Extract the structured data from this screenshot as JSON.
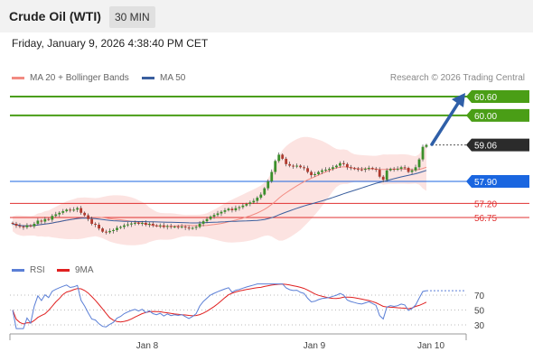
{
  "header": {
    "instrument": "Crude Oil (WTI)",
    "timeframe": "30 MIN"
  },
  "datetime": "Friday, January 9, 2026 4:38:40 PM CET",
  "legend": {
    "ma20_bb": {
      "label": "MA 20 + Bollinger Bands",
      "color": "#f28b82"
    },
    "ma50": {
      "label": "MA 50",
      "color": "#3a5f9e"
    }
  },
  "credit": "Research © 2026 Trading Central",
  "rsi_legend": {
    "rsi": {
      "label": "RSI",
      "color": "#5b7fd6"
    },
    "ma9": {
      "label": "9MA",
      "color": "#e02020"
    }
  },
  "chart_data": [
    {
      "type": "candlestick",
      "y_axis_side": "right",
      "current_price": {
        "value": 59.06,
        "label": "59.06"
      },
      "levels": [
        {
          "value": 60.6,
          "label": "60.60",
          "role": "resistance",
          "color": "#4a9e16"
        },
        {
          "value": 60.0,
          "label": "60.00",
          "role": "resistance",
          "color": "#4a9e16"
        },
        {
          "value": 57.9,
          "label": "57.90",
          "role": "pivot",
          "color": "#1a66e0"
        },
        {
          "value": 57.2,
          "label": "57.20",
          "role": "support",
          "color": "#e03030"
        },
        {
          "value": 56.75,
          "label": "56.75",
          "role": "support",
          "color": "#e03030"
        }
      ],
      "x_ticks": [
        "Jan 8",
        "Jan 9",
        "Jan 10"
      ],
      "close_series": [
        56.55,
        56.49,
        56.46,
        56.44,
        56.5,
        56.47,
        56.55,
        56.65,
        56.62,
        56.7,
        56.68,
        56.8,
        56.85,
        56.9,
        56.95,
        57.0,
        56.98,
        57.0,
        57.05,
        56.9,
        56.82,
        56.7,
        56.55,
        56.52,
        56.4,
        56.3,
        56.28,
        56.32,
        56.35,
        56.42,
        56.45,
        56.5,
        56.53,
        56.56,
        56.58,
        56.55,
        56.58,
        56.52,
        56.55,
        56.5,
        56.48,
        56.5,
        56.45,
        56.48,
        56.45,
        56.46,
        56.45,
        56.46,
        56.43,
        56.4,
        56.42,
        56.45,
        56.55,
        56.63,
        56.7,
        56.78,
        56.83,
        56.88,
        56.93,
        56.98,
        57.03,
        56.98,
        57.05,
        57.08,
        57.13,
        57.18,
        57.23,
        57.28,
        57.38,
        57.48,
        57.68,
        57.9,
        58.2,
        58.55,
        58.75,
        58.62,
        58.45,
        58.4,
        58.38,
        58.4,
        58.35,
        58.32,
        58.2,
        58.1,
        58.13,
        58.2,
        58.25,
        58.27,
        58.3,
        58.35,
        58.4,
        58.48,
        58.45,
        58.35,
        58.32,
        58.3,
        58.28,
        58.27,
        58.3,
        58.33,
        58.3,
        58.27,
        58.05,
        57.95,
        58.25,
        58.3,
        58.28,
        58.3,
        58.35,
        58.33,
        58.2,
        58.25,
        58.35,
        58.6,
        59.0,
        59.06
      ]
    },
    {
      "type": "line",
      "name": "RSI",
      "levels": [
        70,
        50,
        30
      ]
    }
  ]
}
